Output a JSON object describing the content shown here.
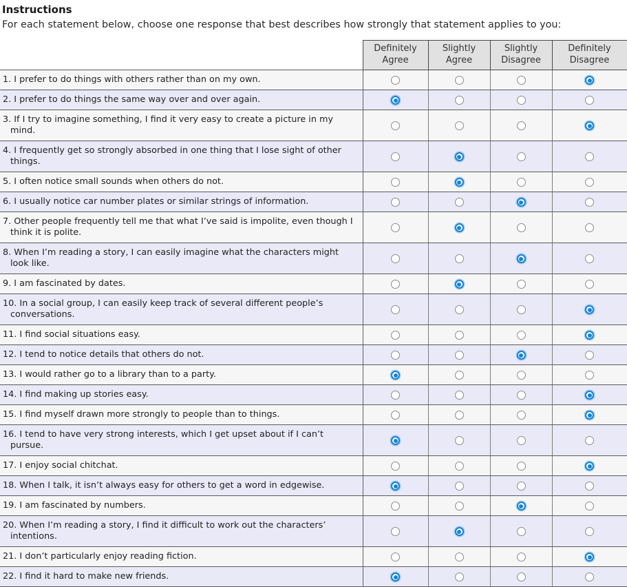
{
  "instructions": {
    "title": "Instructions",
    "body": "For each statement below, choose one response that best describes how strongly that statement applies to you:"
  },
  "options": [
    "Definitely Agree",
    "Slightly Agree",
    "Slightly Disagree",
    "Definitely Disagree"
  ],
  "colors": {
    "accent_blue": "#1583d6",
    "row_base": "#f6f6f6",
    "row_alt": "#e9e9f8",
    "header_bg": "#e1e1e1"
  },
  "questions": [
    {
      "label": "1. I prefer to do things with others rather than on my own.",
      "selected": "Definitely Disagree",
      "selected_index": 3
    },
    {
      "label": "2. I prefer to do things the same way over and over again.",
      "selected": "Definitely Agree",
      "selected_index": 0
    },
    {
      "label": "3. If I try to imagine something, I find it very easy to create a picture in my mind.",
      "selected": "Definitely Disagree",
      "selected_index": 3
    },
    {
      "label": "4. I frequently get so strongly absorbed in one thing that I lose sight of other things.",
      "selected": "Slightly Agree",
      "selected_index": 1
    },
    {
      "label": "5. I often notice small sounds when others do not.",
      "selected": "Slightly Agree",
      "selected_index": 1
    },
    {
      "label": "6. I usually notice car number plates or similar strings of information.",
      "selected": "Slightly Disagree",
      "selected_index": 2
    },
    {
      "label": "7. Other people frequently tell me that what I’ve said is impolite, even though I think it is polite.",
      "selected": "Slightly Agree",
      "selected_index": 1
    },
    {
      "label": "8. When I’m reading a story, I can easily imagine what the characters might look like.",
      "selected": "Slightly Disagree",
      "selected_index": 2
    },
    {
      "label": "9. I am fascinated by dates.",
      "selected": "Slightly Agree",
      "selected_index": 1
    },
    {
      "label": "10. In a social group, I can easily keep track of several different people’s conversations.",
      "selected": "Definitely Disagree",
      "selected_index": 3
    },
    {
      "label": "11. I find social situations easy.",
      "selected": "Definitely Disagree",
      "selected_index": 3
    },
    {
      "label": "12. I tend to notice details that others do not.",
      "selected": "Slightly Disagree",
      "selected_index": 2
    },
    {
      "label": "13. I would rather go to a library than to a party.",
      "selected": "Definitely Agree",
      "selected_index": 0
    },
    {
      "label": "14. I find making up stories easy.",
      "selected": "Definitely Disagree",
      "selected_index": 3
    },
    {
      "label": "15. I find myself drawn more strongly to people than to things.",
      "selected": "Definitely Disagree",
      "selected_index": 3
    },
    {
      "label": "16. I tend to have very strong interests, which I get upset about if I can’t pursue.",
      "selected": "Definitely Agree",
      "selected_index": 0
    },
    {
      "label": "17. I enjoy social chitchat.",
      "selected": "Definitely Disagree",
      "selected_index": 3
    },
    {
      "label": "18. When I talk, it isn’t always easy for others to get a word in edgewise.",
      "selected": "Definitely Agree",
      "selected_index": 0
    },
    {
      "label": "19. I am fascinated by numbers.",
      "selected": "Slightly Disagree",
      "selected_index": 2
    },
    {
      "label": "20. When I’m reading a story, I find it difficult to work out the characters’ intentions.",
      "selected": "Slightly Agree",
      "selected_index": 1
    },
    {
      "label": "21. I don’t particularly enjoy reading fiction.",
      "selected": "Definitely Disagree",
      "selected_index": 3
    },
    {
      "label": "22. I find it hard to make new friends.",
      "selected": "Definitely Agree",
      "selected_index": 0
    }
  ]
}
